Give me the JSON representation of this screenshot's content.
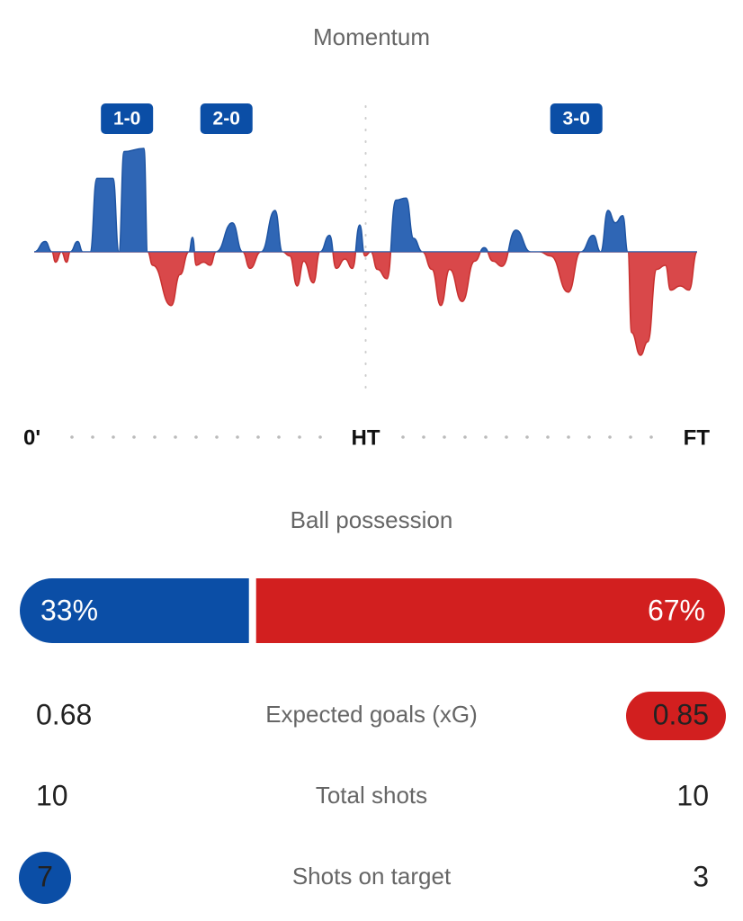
{
  "momentum": {
    "type": "area",
    "title": "Momentum",
    "xlim": [
      0,
      90
    ],
    "ylim": [
      -100,
      100
    ],
    "xticks": [
      {
        "value": 0,
        "label": "0'"
      },
      {
        "value": 45,
        "label": "HT"
      },
      {
        "value": 90,
        "label": "FT"
      }
    ],
    "colors": {
      "positive": "#2f66b5",
      "negative": "#d9484a"
    },
    "goals": [
      {
        "label": "1-0",
        "minute": 12.6
      },
      {
        "label": "2-0",
        "minute": 26.1
      },
      {
        "label": "3-0",
        "minute": 73.6
      }
    ],
    "x": [
      0,
      1.5,
      2.4,
      2.9,
      3.7,
      4.4,
      4.9,
      5.9,
      6.6,
      7.6,
      8.5,
      10.7,
      11.5,
      12.2,
      14.9,
      15.4,
      16.1,
      18.6,
      19.8,
      21.0,
      21.5,
      22.0,
      23.0,
      23.9,
      24.7,
      26.9,
      28.3,
      29.3,
      30.8,
      32.7,
      33.7,
      34.7,
      35.7,
      36.6,
      37.9,
      38.8,
      40.1,
      41.0,
      42.2,
      43.2,
      44.2,
      44.9,
      45.7,
      46.6,
      47.9,
      49.1,
      50.5,
      51.5,
      52.7,
      54.0,
      55.2,
      56.4,
      58.1,
      59.8,
      61.1,
      62.3,
      63.5,
      65.4,
      67.4,
      68.6,
      70.1,
      72.5,
      74.2,
      75.9,
      76.9,
      77.9,
      78.9,
      79.9,
      80.6,
      81.1,
      82.3,
      83.3,
      84.5,
      85.7,
      86.4,
      87.7,
      88.9,
      90
    ],
    "values": [
      0,
      10,
      0,
      -10,
      0,
      -10,
      0,
      10,
      0,
      0,
      71,
      71,
      0,
      97,
      100,
      0,
      -13,
      -52,
      -22,
      0,
      14,
      -13,
      -10,
      -13,
      0,
      28,
      0,
      -16,
      0,
      40,
      0,
      -4,
      -33,
      -9,
      -30,
      0,
      16,
      -16,
      -7,
      -16,
      26,
      -4,
      0,
      -17,
      -26,
      50,
      52,
      13,
      0,
      -17,
      -52,
      -17,
      -48,
      -9,
      4,
      -9,
      -14,
      21,
      0,
      0,
      -4,
      -39,
      0,
      16,
      0,
      40,
      28,
      35,
      0,
      -78,
      -100,
      -87,
      -17,
      -13,
      -37,
      -33,
      -37,
      0
    ]
  },
  "possession": {
    "title": "Ball possession",
    "values": [
      33,
      67
    ],
    "value_labels": [
      "33%",
      "67%"
    ],
    "colors": [
      "#0b4ea6",
      "#d21f1f"
    ]
  },
  "stats": [
    {
      "label": "Expected goals (xG)",
      "home": 0.68,
      "away": 0.85,
      "highlight": "away"
    },
    {
      "label": "Total shots",
      "home": 10,
      "away": 10
    },
    {
      "label": "Shots on target",
      "home": 7,
      "away": 3,
      "highlight": "home"
    }
  ]
}
